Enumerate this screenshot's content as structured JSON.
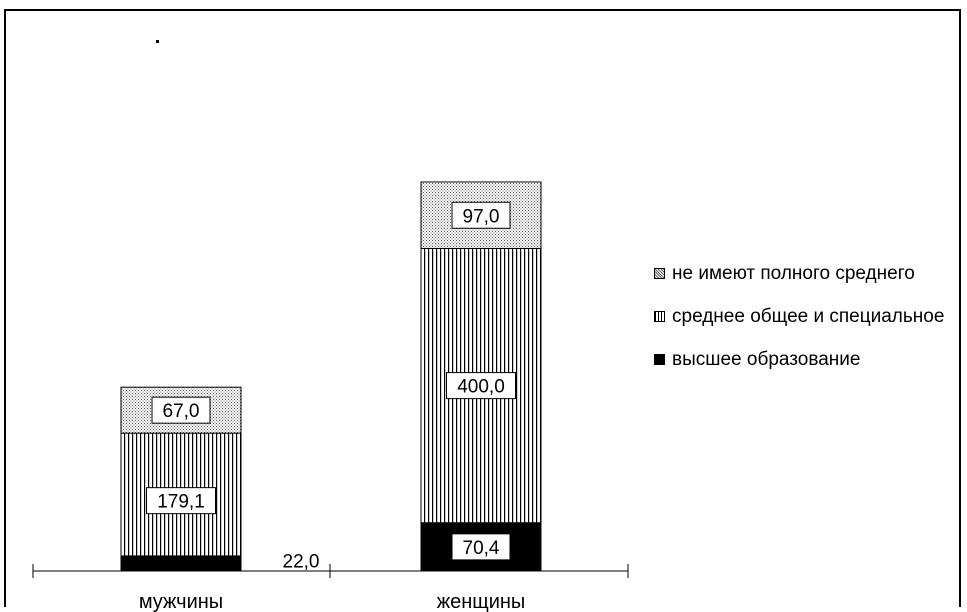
{
  "chart_data": {
    "type": "bar",
    "stacked": true,
    "categories": [
      "мужчины",
      "женщины"
    ],
    "series": [
      {
        "name": "высшее образование",
        "values": [
          22.0,
          70.4
        ],
        "labels": [
          "22,0",
          "70,4"
        ],
        "fill": "solid"
      },
      {
        "name": "среднее общее и специальное",
        "values": [
          179.1,
          400.0
        ],
        "labels": [
          "179,1",
          "400,0"
        ],
        "fill": "vertical-hatch"
      },
      {
        "name": "не имеют полного среднего",
        "values": [
          67.0,
          97.0
        ],
        "labels": [
          "67,0",
          "97,0"
        ],
        "fill": "crosshatch"
      }
    ],
    "legend_order": [
      2,
      1,
      0
    ],
    "legend_position": "right",
    "grid": false,
    "ylim": [
      0,
      640
    ],
    "colors": {
      "ink": "#000000",
      "background": "#ffffff"
    }
  }
}
